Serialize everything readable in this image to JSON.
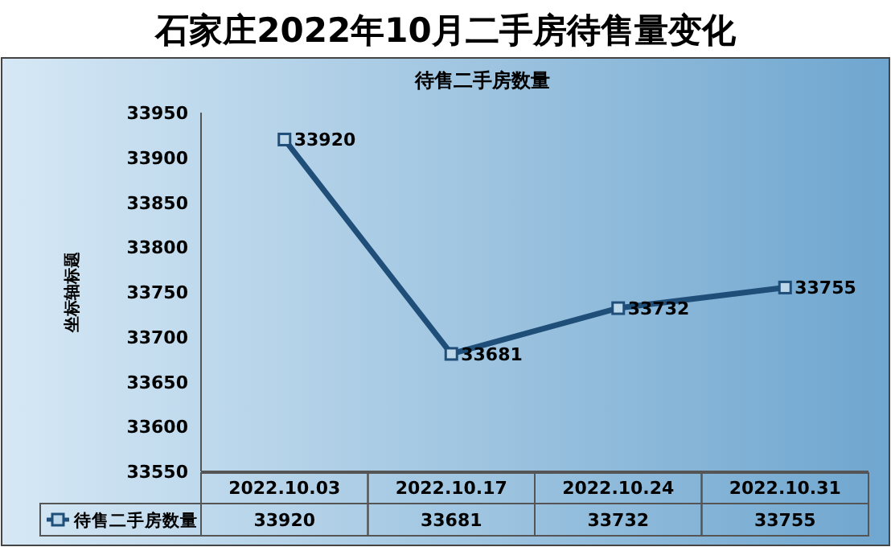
{
  "chart_data": {
    "type": "line",
    "title": "石家庄2022年10月二手房待售量变化",
    "subtitle": "待售二手房数量",
    "ylabel": "坐标轴标题",
    "categories": [
      "2022.10.03",
      "2022.10.17",
      "2022.10.24",
      "2022.10.31"
    ],
    "series": [
      {
        "name": "待售二手房数量",
        "color": "#1f4e79",
        "values": [
          33920,
          33681,
          33732,
          33755
        ]
      }
    ],
    "ylim": [
      33550,
      33950
    ],
    "yticks": [
      33550,
      33600,
      33650,
      33700,
      33750,
      33800,
      33850,
      33900,
      33950
    ],
    "data_labels": true,
    "value_labels": [
      "33920",
      "33681",
      "33732",
      "33755"
    ],
    "marker": "square",
    "legend": "bottom",
    "grid": false
  }
}
